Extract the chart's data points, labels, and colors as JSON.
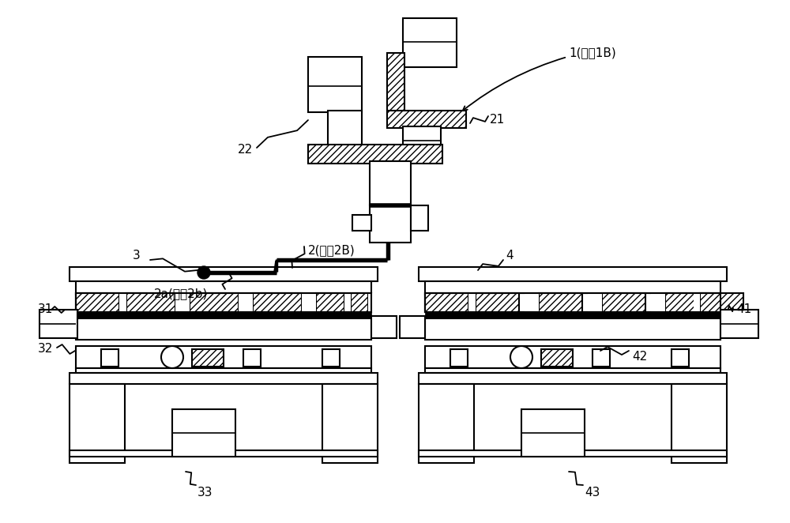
{
  "bg_color": "#ffffff",
  "line_color": "#000000",
  "labels": {
    "1B": "1(或者1B)",
    "21": "21",
    "22": "22",
    "2a": "2a(或者2b)",
    "2B": "2(或者2B)",
    "3": "3",
    "31": "31",
    "32": "32",
    "33": "33",
    "4": "4",
    "41": "41",
    "42": "42",
    "43": "43"
  },
  "figsize": [
    10.0,
    6.62
  ],
  "dpi": 100
}
